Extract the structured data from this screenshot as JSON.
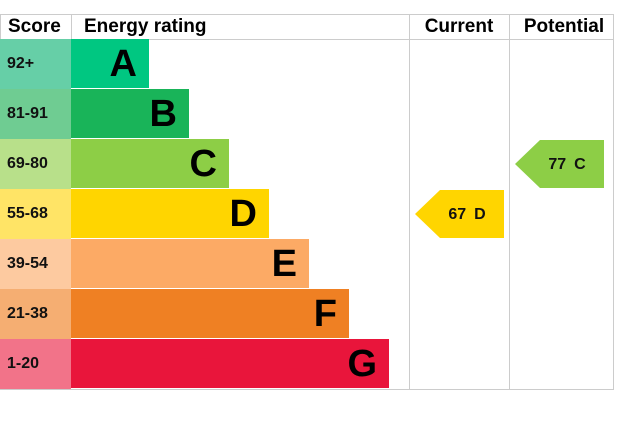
{
  "header": {
    "score": "Score",
    "energy_rating": "Energy rating",
    "current": "Current",
    "potential": "Potential"
  },
  "bands": [
    {
      "score": "92+",
      "rating": "A",
      "color": "#00c781",
      "score_color": "#66cfa7"
    },
    {
      "score": "81-91",
      "rating": "B",
      "color": "#19b459",
      "score_color": "#6fcc92"
    },
    {
      "score": "69-80",
      "rating": "C",
      "color": "#8dce46",
      "score_color": "#b8e08a"
    },
    {
      "score": "55-68",
      "rating": "D",
      "color": "#ffd500",
      "score_color": "#ffe466"
    },
    {
      "score": "39-54",
      "rating": "E",
      "color": "#fcaa65",
      "score_color": "#fdcaa0"
    },
    {
      "score": "21-38",
      "rating": "F",
      "color": "#ef8023",
      "score_color": "#f5ae72"
    },
    {
      "score": "1-20",
      "rating": "G",
      "color": "#e9153b",
      "score_color": "#f27389"
    }
  ],
  "current": {
    "value": 67,
    "rating": "D"
  },
  "potential": {
    "value": 77,
    "rating": "C"
  }
}
